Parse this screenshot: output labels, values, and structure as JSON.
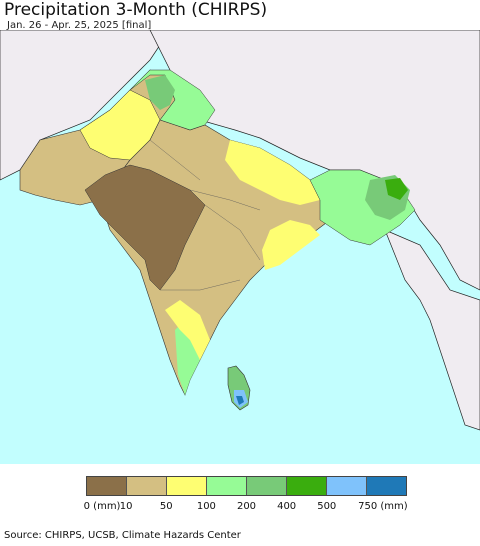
{
  "header": {
    "title": "Precipitation 3-Month (CHIRPS)",
    "subtitle": "Jan. 26 - Apr. 25, 2025 [final]"
  },
  "legend": {
    "colors": [
      "#8b7049",
      "#d4bf82",
      "#fefe72",
      "#96fb96",
      "#78ca78",
      "#3aad0e",
      "#7fc2fb",
      "#1f79b7"
    ],
    "labels": [
      "0 (mm)",
      "10",
      "50",
      "100",
      "200",
      "400",
      "500",
      "750 (mm)"
    ]
  },
  "map_colors": {
    "ocean": "#c2fefe",
    "outside_land": "#f0ecf1"
  },
  "footer": {
    "source": "Source: CHIRPS, UCSB, Climate Hazards Center"
  }
}
